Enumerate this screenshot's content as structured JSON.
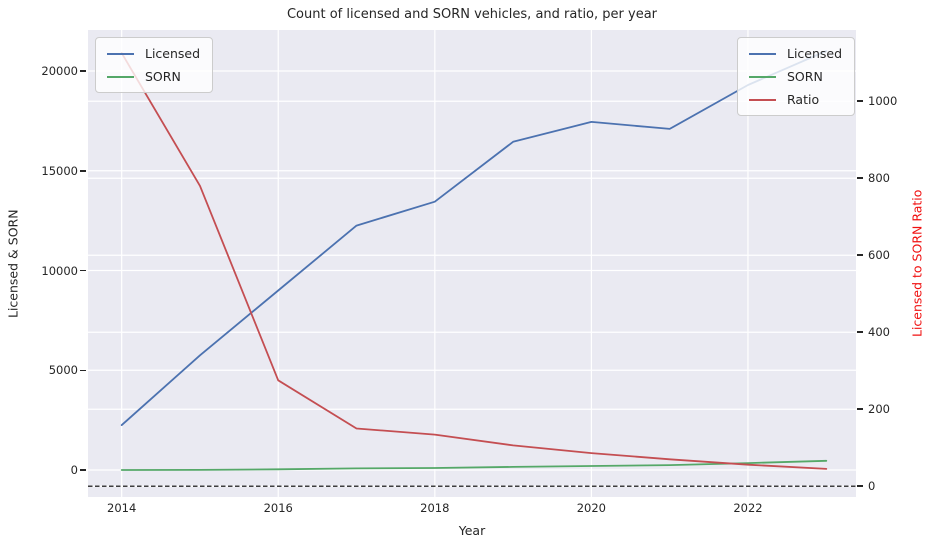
{
  "title": "Count of licensed and SORN vehicles, and ratio, per year",
  "x_axis": {
    "label": "Year",
    "tick_values": [
      2014,
      2016,
      2018,
      2020,
      2022
    ],
    "tick_labels": [
      "2014",
      "2016",
      "2018",
      "2020",
      "2022"
    ]
  },
  "y_left_axis": {
    "label": "Licensed & SORN",
    "tick_values": [
      0,
      5000,
      10000,
      15000,
      20000
    ],
    "tick_labels": [
      "0",
      "5000",
      "10000",
      "15000",
      "20000"
    ]
  },
  "y_right_axis": {
    "label": "Licensed to SORN Ratio",
    "label_color": "#f01010",
    "tick_values": [
      0,
      200,
      400,
      600,
      800,
      1000
    ],
    "tick_labels": [
      "0",
      "200",
      "400",
      "600",
      "800",
      "1000"
    ]
  },
  "legend_left": {
    "entries": [
      {
        "label": "Licensed",
        "color": "#4c72b0"
      },
      {
        "label": "SORN",
        "color": "#55a868"
      }
    ]
  },
  "legend_right": {
    "entries": [
      {
        "label": "Licensed",
        "color": "#4c72b0"
      },
      {
        "label": "SORN",
        "color": "#55a868"
      },
      {
        "label": "Ratio",
        "color": "#c44e52"
      }
    ]
  },
  "colors": {
    "licensed_line": "#4c72b0",
    "sorn_line": "#55a868",
    "ratio_line": "#c44e52",
    "plot_background": "#eaeaf2",
    "gridline": "#ffffff",
    "text": "#262626",
    "reference_line": "#000000"
  },
  "chart_data": {
    "type": "line",
    "title": "Count of licensed and SORN vehicles, and ratio, per year",
    "xlabel": "Year",
    "ylabel_left": "Licensed & SORN",
    "ylabel_right": "Licensed to SORN Ratio",
    "x": [
      2014,
      2015,
      2016,
      2017,
      2018,
      2019,
      2020,
      2021,
      2022,
      2023
    ],
    "series": [
      {
        "name": "Licensed",
        "axis": "left",
        "color": "#4c72b0",
        "values": [
          2250,
          5750,
          9000,
          12250,
          13450,
          16450,
          17450,
          17100,
          19300,
          21000
        ]
      },
      {
        "name": "SORN",
        "axis": "left",
        "color": "#55a868",
        "values": [
          2,
          7,
          33,
          82,
          100,
          155,
          203,
          244,
          345,
          460
        ]
      },
      {
        "name": "Ratio",
        "axis": "right",
        "color": "#c44e52",
        "values": [
          1125,
          780,
          275,
          150,
          134,
          106,
          86,
          70,
          56,
          45
        ]
      }
    ],
    "xlim": [
      2013.57,
      2023.38
    ],
    "ylim_left": [
      -1353,
      22055
    ],
    "ylim_right": [
      -28,
      1185
    ],
    "grid": true,
    "grid_note": "white gridlines for both left-axis and right-axis ticks, plus vertical gridlines at labeled years",
    "reference_line": {
      "axis": "right",
      "value": 0,
      "style": "dashed",
      "color": "#000000"
    },
    "legend_positions": [
      "upper left",
      "upper right"
    ]
  }
}
